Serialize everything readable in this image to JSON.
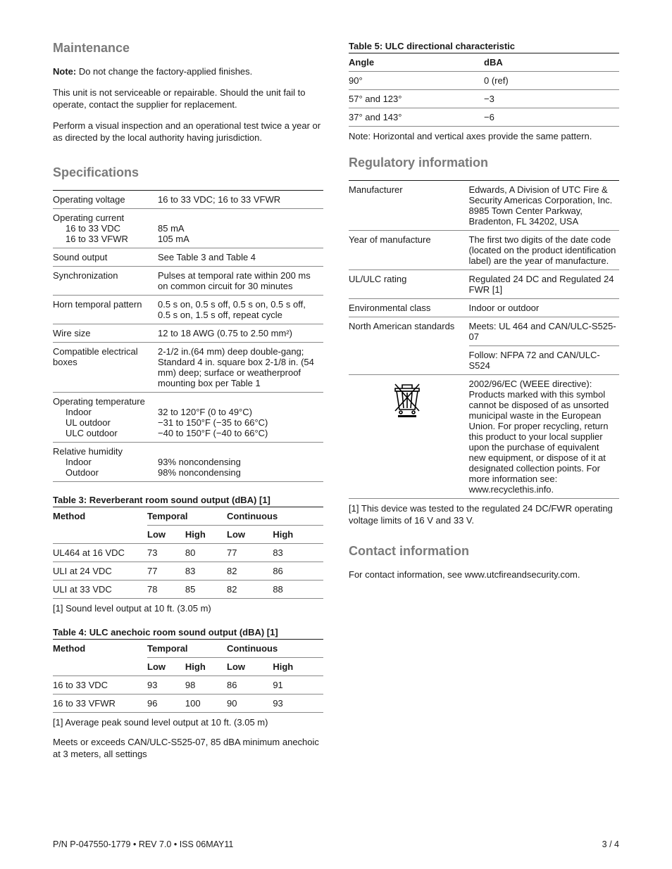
{
  "left": {
    "maintenance": {
      "heading": "Maintenance",
      "p1_bold": "Note:",
      "p1_rest": " Do not change the factory-applied finishes.",
      "p2": "This unit is not serviceable or repairable. Should the unit fail to operate, contact the supplier for replacement.",
      "p3": "Perform a visual inspection and an operational test twice a year or as directed by the local authority having jurisdiction."
    },
    "specifications": {
      "heading": "Specifications",
      "rows": [
        {
          "l": "Operating voltage",
          "r": "16 to 33 VDC; 16 to 33 VFWR"
        },
        {
          "l": "Operating current",
          "sub": [
            "16 to 33 VDC",
            "16 to 33 VFWR"
          ],
          "r": "",
          "rsub": [
            "85 mA",
            "105 mA"
          ]
        },
        {
          "l": "Sound output",
          "r": "See Table 3 and Table 4"
        },
        {
          "l": "Synchronization",
          "r": "Pulses at temporal rate within 200 ms on common circuit for 30 minutes"
        },
        {
          "l": "Horn temporal pattern",
          "r": "0.5 s on, 0.5 s off, 0.5 s on, 0.5 s off, 0.5 s on, 1.5 s off, repeat cycle"
        },
        {
          "l": "Wire size",
          "r": "12 to 18 AWG (0.75 to 2.50 mm²)"
        },
        {
          "l": "Compatible electrical boxes",
          "r": "2-1/2 in.(64 mm) deep double-gang; Standard 4 in. square box 2-1/8 in. (54 mm) deep; surface or weatherproof mounting box per Table 1"
        },
        {
          "l": "Operating temperature",
          "sub": [
            "Indoor",
            "UL outdoor",
            "ULC outdoor"
          ],
          "r": "",
          "rsub": [
            "32 to 120°F (0 to 49°C)",
            "−31 to 150°F (−35 to 66°C)",
            "−40 to 150°F (−40 to 66°C)"
          ]
        },
        {
          "l": "Relative humidity",
          "sub": [
            "Indoor",
            "Outdoor"
          ],
          "r": "",
          "rsub": [
            "93% noncondensing",
            "98% noncondensing"
          ]
        }
      ]
    },
    "table3": {
      "caption": "Table 3: Reverberant room sound output (dBA) [1]",
      "h_method": "Method",
      "h_temp": "Temporal",
      "h_cont": "Continuous",
      "h_low": "Low",
      "h_high": "High",
      "rows": [
        {
          "m": "UL464 at 16 VDC",
          "tl": "73",
          "th": "80",
          "cl": "77",
          "ch": "83"
        },
        {
          "m": "ULI at 24 VDC",
          "tl": "77",
          "th": "83",
          "cl": "82",
          "ch": "86"
        },
        {
          "m": "ULI at 33 VDC",
          "tl": "78",
          "th": "85",
          "cl": "82",
          "ch": "88"
        }
      ],
      "note": "[1] Sound level output at 10 ft. (3.05 m)"
    },
    "table4": {
      "caption": "Table 4: ULC anechoic room sound output (dBA) [1]",
      "h_method": "Method",
      "h_temp": "Temporal",
      "h_cont": "Continuous",
      "h_low": "Low",
      "h_high": "High",
      "rows": [
        {
          "m": "16 to 33 VDC",
          "tl": "93",
          "th": "98",
          "cl": "86",
          "ch": "91"
        },
        {
          "m": "16 to 33 VFWR",
          "tl": "96",
          "th": "100",
          "cl": "90",
          "ch": "93"
        }
      ],
      "note1": "[1] Average peak sound level output at 10 ft. (3.05 m)",
      "note2": "Meets or exceeds CAN/ULC-S525-07, 85 dBA minimum anechoic at 3 meters, all settings"
    }
  },
  "right": {
    "table5": {
      "caption": "Table 5: ULC directional characteristic",
      "h_angle": "Angle",
      "h_dba": "dBA",
      "rows": [
        {
          "a": "90°",
          "d": "0 (ref)"
        },
        {
          "a": "57° and 123°",
          "d": "−3"
        },
        {
          "a": "37° and 143°",
          "d": "−6"
        }
      ],
      "note": "Note: Horizontal and vertical axes provide the same pattern."
    },
    "regulatory": {
      "heading": "Regulatory information",
      "rows": [
        {
          "l": "Manufacturer",
          "r": "Edwards, A Division of UTC Fire & Security Americas Corporation, Inc.\n8985 Town Center Parkway, Bradenton, FL 34202, USA"
        },
        {
          "l": "Year of manufacture",
          "r": "The first two digits of the date code (located on the product identification label) are the year of manufacture."
        },
        {
          "l": "UL/ULC rating",
          "r": "Regulated 24 DC and Regulated 24 FWR [1]"
        },
        {
          "l": "Environmental class",
          "r": "Indoor or outdoor"
        },
        {
          "l": "North American standards",
          "r": "Meets: UL 464 and CAN/ULC-S525-07",
          "r2": "Follow: NFPA 72 and CAN/ULC-S524"
        },
        {
          "weee": true,
          "r": "2002/96/EC (WEEE directive): Products marked with this symbol cannot be disposed of as unsorted municipal waste in the European Union. For proper recycling, return this product to your local supplier upon the purchase of equivalent new equipment, or dispose of it at designated collection points. For more information see: www.recyclethis.info."
        }
      ],
      "footnote": "[1] This device was tested to the regulated 24 DC/FWR operating voltage limits of 16 V and 33 V."
    },
    "contact": {
      "heading": "Contact information",
      "p": "For contact information, see www.utcfireandsecurity.com."
    }
  },
  "footer": {
    "left": "P/N P-047550-1779 • REV 7.0 • ISS 06MAY11",
    "right": "3 / 4"
  }
}
